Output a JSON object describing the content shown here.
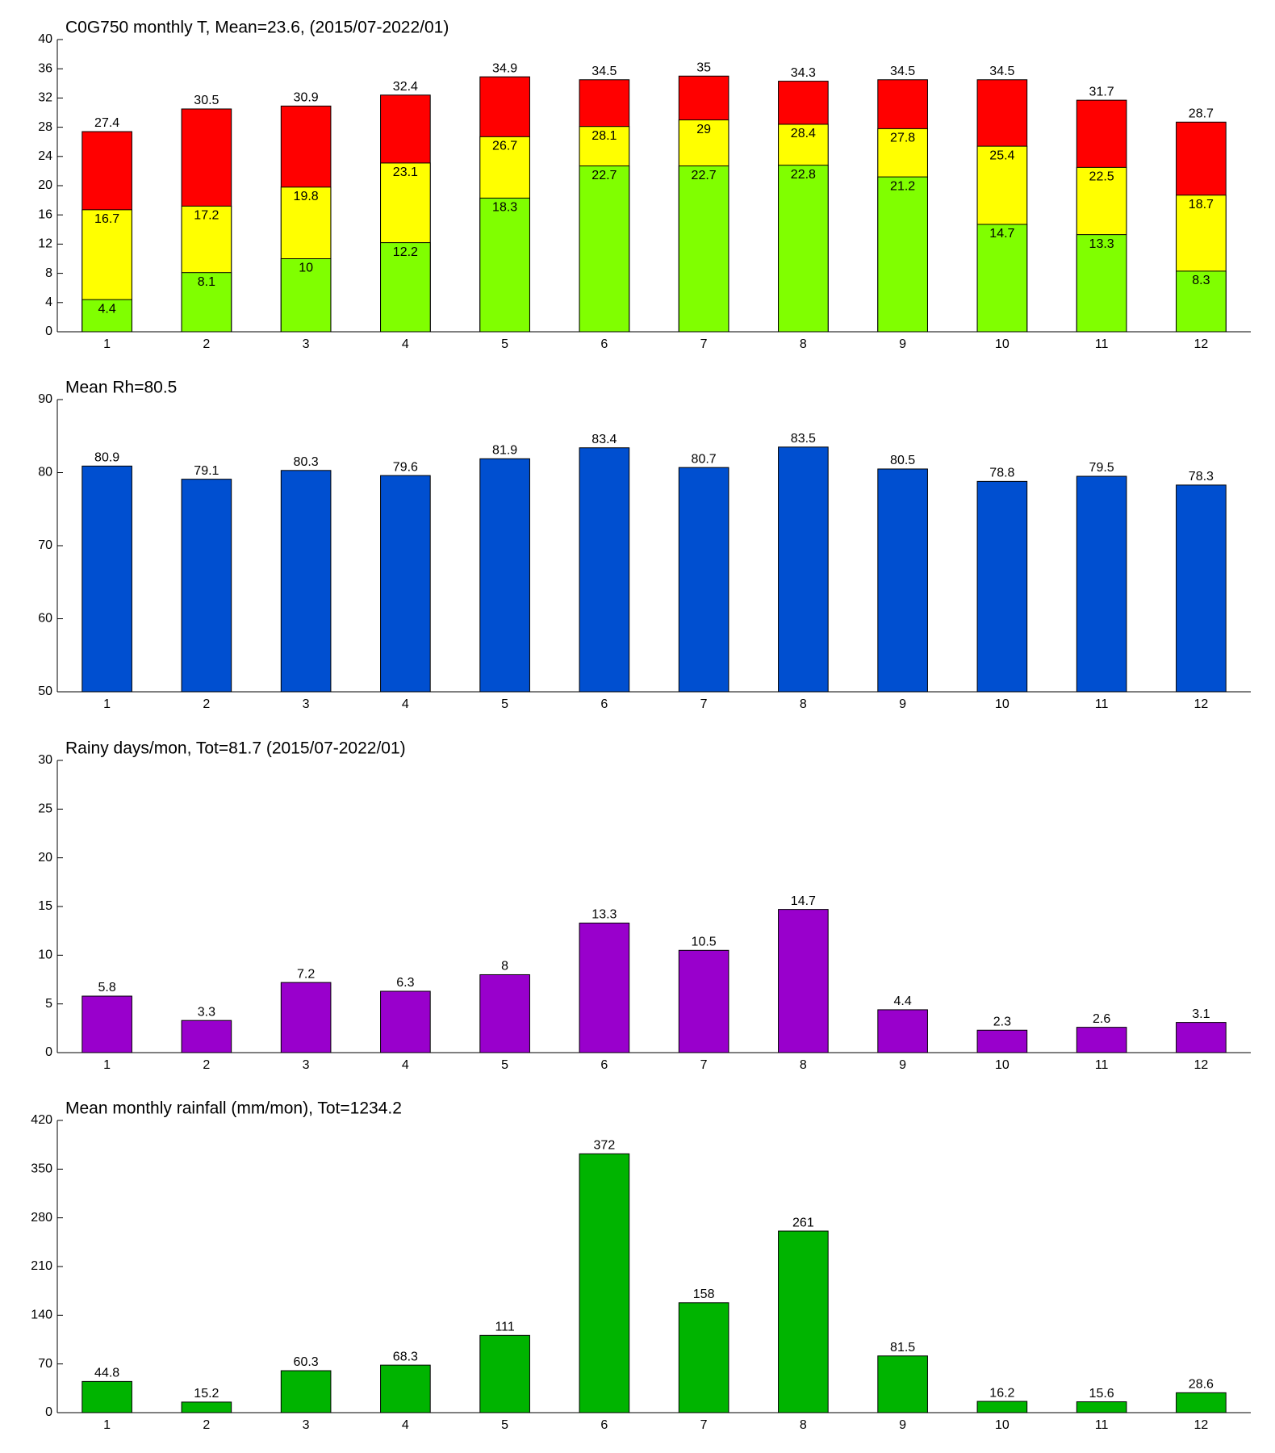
{
  "chart_data": [
    {
      "type": "overlap_bar",
      "title": "C0G750 monthly T, Mean=23.6, (2015/07-2022/01)",
      "categories": [
        "1",
        "2",
        "3",
        "4",
        "5",
        "6",
        "7",
        "8",
        "9",
        "10",
        "11",
        "12"
      ],
      "series": [
        {
          "color": "#ff0000",
          "values": [
            27.4,
            30.5,
            30.9,
            32.4,
            34.9,
            34.5,
            35,
            34.3,
            34.5,
            34.5,
            31.7,
            28.7
          ]
        },
        {
          "color": "#ffff00",
          "values": [
            16.7,
            17.2,
            19.8,
            23.1,
            26.7,
            28.1,
            29,
            28.4,
            27.8,
            25.4,
            22.5,
            18.7
          ]
        },
        {
          "color": "#80ff00",
          "values": [
            4.4,
            8.1,
            10,
            12.2,
            18.3,
            22.7,
            22.7,
            22.8,
            21.2,
            14.7,
            13.3,
            8.3
          ]
        }
      ],
      "ylim": [
        0,
        40
      ],
      "yticks": [
        0,
        4,
        8,
        12,
        16,
        20,
        24,
        28,
        32,
        36,
        40
      ]
    },
    {
      "type": "bar",
      "title": "Mean Rh=80.5",
      "categories": [
        "1",
        "2",
        "3",
        "4",
        "5",
        "6",
        "7",
        "8",
        "9",
        "10",
        "11",
        "12"
      ],
      "color": "#004fd0",
      "values": [
        80.9,
        79.1,
        80.3,
        79.6,
        81.9,
        83.4,
        80.7,
        83.5,
        80.5,
        78.8,
        79.5,
        78.3
      ],
      "ylim": [
        50,
        90
      ],
      "yticks": [
        50,
        60,
        70,
        80,
        90
      ]
    },
    {
      "type": "bar",
      "title": "Rainy days/mon, Tot=81.7 (2015/07-2022/01)",
      "categories": [
        "1",
        "2",
        "3",
        "4",
        "5",
        "6",
        "7",
        "8",
        "9",
        "10",
        "11",
        "12"
      ],
      "color": "#9900cc",
      "values": [
        5.8,
        3.3,
        7.2,
        6.3,
        8,
        13.3,
        10.5,
        14.7,
        4.4,
        2.3,
        2.6,
        3.1
      ],
      "ylim": [
        0,
        30
      ],
      "yticks": [
        0,
        5,
        10,
        15,
        20,
        25,
        30
      ]
    },
    {
      "type": "bar",
      "title": "Mean monthly rainfall (mm/mon), Tot=1234.2",
      "categories": [
        "1",
        "2",
        "3",
        "4",
        "5",
        "6",
        "7",
        "8",
        "9",
        "10",
        "11",
        "12"
      ],
      "color": "#00b400",
      "values": [
        44.8,
        15.2,
        60.3,
        68.3,
        111,
        372,
        158,
        261,
        81.5,
        16.2,
        15.6,
        28.6
      ],
      "ylim": [
        0,
        420
      ],
      "yticks": [
        0,
        70,
        140,
        210,
        280,
        350,
        420
      ]
    }
  ]
}
